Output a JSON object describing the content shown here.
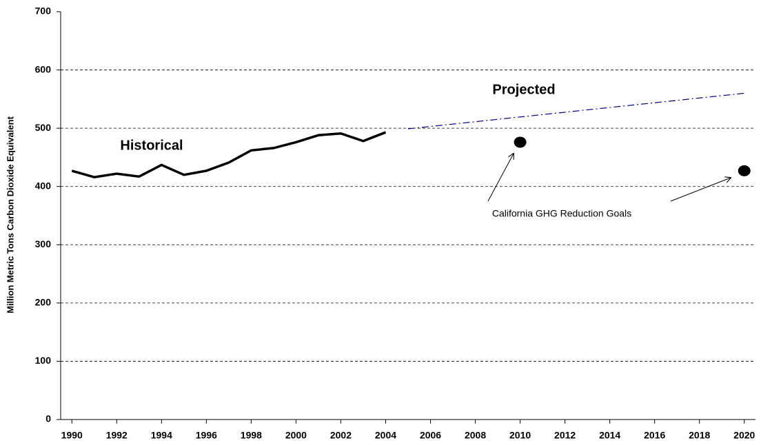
{
  "chart_data": {
    "type": "line",
    "y_label": "Million Metric Tons Carbon Dioxide Equivalent",
    "xlim": [
      1989.5,
      2020.5
    ],
    "xticks": [
      1990,
      1992,
      1994,
      1996,
      1998,
      2000,
      2002,
      2004,
      2006,
      2008,
      2010,
      2012,
      2014,
      2016,
      2018,
      2020
    ],
    "ylim": [
      0,
      700
    ],
    "yticks": [
      0,
      100,
      200,
      300,
      400,
      500,
      600,
      700
    ],
    "grid": true,
    "series": [
      {
        "name": "Historical",
        "color": "#000000",
        "style": "solid",
        "x": [
          1990,
          1991,
          1992,
          1993,
          1994,
          1995,
          1996,
          1997,
          1998,
          1999,
          2000,
          2001,
          2002,
          2003,
          2004
        ],
        "values": [
          427,
          416,
          422,
          417,
          437,
          420,
          427,
          441,
          462,
          466,
          476,
          488,
          491,
          478,
          493
        ]
      },
      {
        "name": "Projected",
        "color": "#000080",
        "style": "dashdot",
        "x": [
          2005,
          2020
        ],
        "values": [
          499,
          560
        ]
      },
      {
        "name": "California GHG Reduction Goals",
        "color": "#000000",
        "style": "points",
        "x": [
          2010,
          2020
        ],
        "values": [
          476,
          427
        ]
      }
    ]
  }
}
